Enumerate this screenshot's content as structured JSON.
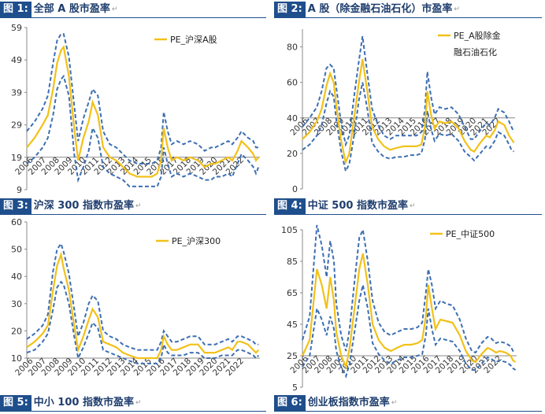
{
  "panels": [
    {
      "tag": "图 1:",
      "title": "全部 A 股市盈率"
    },
    {
      "tag": "图 2:",
      "title": "A 股（除金融石油石化）市盈率"
    },
    {
      "tag": "图 3:",
      "title": "沪深 300 指数市盈率"
    },
    {
      "tag": "图 4:",
      "title": "中证 500 指数市盈率"
    },
    {
      "tag": "图 5:",
      "title": "中小 100 指数市盈率"
    },
    {
      "tag": "图 6:",
      "title": "创业板指数市盈率"
    }
  ],
  "chart_data": [
    {
      "type": "line",
      "years": [
        "2006",
        "2007",
        "2008",
        "2009",
        "2010",
        "2011",
        "2012",
        "2013",
        "2014",
        "2015",
        "2016",
        "2017",
        "2018",
        "2019",
        "2020",
        "2021",
        "2022"
      ],
      "yticks": [
        59,
        49,
        39,
        29,
        19,
        9
      ],
      "ylim": [
        9,
        59
      ],
      "legend": [
        "PE_沪深A股"
      ],
      "colors": {
        "line": "#f2c11a",
        "band": "#3d6fb2"
      },
      "t": [
        2005.0,
        2005.6,
        2006.2,
        2006.6,
        2007.0,
        2007.3,
        2007.6,
        2007.8,
        2008.2,
        2008.6,
        2008.9,
        2009.3,
        2009.7,
        2010.0,
        2010.4,
        2010.8,
        2011.3,
        2011.8,
        2012.3,
        2012.8,
        2013.4,
        2014.0,
        2014.5,
        2014.9,
        2015.2,
        2015.4,
        2015.7,
        2016.0,
        2016.4,
        2016.9,
        2017.4,
        2018.0,
        2018.5,
        2019.0,
        2019.3,
        2019.8,
        2020.3,
        2020.6,
        2021.0,
        2021.3,
        2021.8,
        2022.2,
        2022.4,
        2022.6
      ],
      "series": [
        {
          "values": [
            22,
            25,
            29,
            32,
            40,
            48,
            52,
            53,
            44,
            28,
            18,
            25,
            30,
            36,
            32,
            22,
            19,
            18,
            16,
            14,
            13,
            13,
            13,
            14,
            18,
            28,
            22,
            18,
            19,
            18,
            19,
            18,
            16,
            17,
            17,
            18,
            19,
            18,
            21,
            24,
            22,
            20,
            18,
            19
          ]
        },
        {
          "values": [
            27,
            30,
            34,
            38,
            48,
            55,
            57,
            57,
            50,
            35,
            24,
            31,
            36,
            40,
            38,
            27,
            23,
            22,
            20,
            18,
            17,
            17,
            17,
            18,
            22,
            33,
            27,
            23,
            24,
            23,
            24,
            23,
            21,
            22,
            22,
            23,
            24,
            23,
            25,
            27,
            25,
            24,
            22,
            22
          ]
        },
        {
          "values": [
            17,
            19,
            22,
            25,
            32,
            40,
            43,
            44,
            38,
            20,
            12,
            16,
            21,
            28,
            25,
            16,
            14,
            13,
            12,
            10,
            10,
            10,
            10,
            10,
            13,
            22,
            17,
            13,
            14,
            13,
            14,
            13,
            12,
            12,
            13,
            13,
            14,
            13,
            17,
            20,
            18,
            16,
            14,
            16
          ]
        }
      ]
    },
    {
      "type": "line",
      "years": [
        "2006",
        "2007",
        "2008",
        "2009",
        "2010",
        "2011",
        "2012",
        "2013",
        "2014",
        "2015",
        "2016",
        "2017",
        "2018",
        "2019",
        "2020",
        "2021",
        "2022"
      ],
      "yticks": [
        80,
        60,
        40,
        20,
        0
      ],
      "ylim": [
        0,
        90
      ],
      "legend": [
        "PE_A股除金融石油石化"
      ],
      "colors": {
        "line": "#f2c11a",
        "band": "#3d6fb2"
      },
      "t": [
        2005.0,
        2005.6,
        2006.2,
        2006.6,
        2007.0,
        2007.3,
        2007.6,
        2007.8,
        2008.2,
        2008.6,
        2008.9,
        2009.3,
        2009.7,
        2010.0,
        2010.4,
        2010.8,
        2011.3,
        2011.8,
        2012.3,
        2012.8,
        2013.4,
        2014.0,
        2014.5,
        2014.9,
        2015.2,
        2015.4,
        2015.7,
        2016.0,
        2016.4,
        2016.9,
        2017.4,
        2018.0,
        2018.5,
        2019.0,
        2019.3,
        2019.8,
        2020.3,
        2020.6,
        2021.0,
        2021.3,
        2021.8,
        2022.2,
        2022.4,
        2022.6
      ],
      "series": [
        {
          "values": [
            28,
            32,
            38,
            45,
            58,
            65,
            60,
            48,
            28,
            15,
            20,
            40,
            60,
            73,
            55,
            35,
            28,
            24,
            22,
            23,
            24,
            24,
            24,
            25,
            35,
            55,
            42,
            34,
            38,
            37,
            38,
            34,
            27,
            22,
            21,
            26,
            30,
            29,
            33,
            38,
            36,
            30,
            28,
            26
          ]
        },
        {
          "values": [
            35,
            40,
            46,
            55,
            68,
            70,
            68,
            58,
            38,
            25,
            30,
            52,
            72,
            86,
            65,
            45,
            36,
            30,
            28,
            30,
            30,
            30,
            30,
            32,
            45,
            66,
            52,
            42,
            46,
            45,
            46,
            42,
            35,
            28,
            28,
            33,
            37,
            36,
            40,
            45,
            43,
            38,
            35,
            32
          ]
        },
        {
          "values": [
            22,
            25,
            30,
            36,
            48,
            55,
            52,
            40,
            22,
            10,
            14,
            30,
            50,
            60,
            45,
            26,
            21,
            18,
            17,
            18,
            18,
            19,
            19,
            20,
            28,
            44,
            34,
            27,
            31,
            30,
            31,
            27,
            21,
            18,
            16,
            20,
            24,
            23,
            27,
            32,
            30,
            25,
            22,
            21
          ]
        }
      ]
    },
    {
      "type": "line",
      "years": [
        "2006",
        "2007",
        "2008",
        "2009",
        "2010",
        "2011",
        "2012",
        "2013",
        "2014",
        "2015",
        "2016",
        "2017",
        "2018",
        "2019",
        "2020",
        "2021",
        "2022"
      ],
      "yticks": [
        60,
        50,
        40,
        30,
        20,
        10
      ],
      "ylim": [
        10,
        60
      ],
      "legend": [
        "PE_沪深300"
      ],
      "colors": {
        "line": "#f2c11a",
        "band": "#3d6fb2"
      },
      "t": [
        2005.0,
        2005.6,
        2006.2,
        2006.6,
        2007.0,
        2007.3,
        2007.6,
        2007.8,
        2008.2,
        2008.6,
        2008.9,
        2009.3,
        2009.7,
        2010.0,
        2010.4,
        2010.8,
        2011.3,
        2011.8,
        2012.3,
        2012.8,
        2013.4,
        2014.0,
        2014.5,
        2014.9,
        2015.2,
        2015.4,
        2015.7,
        2016.0,
        2016.4,
        2016.9,
        2017.4,
        2018.0,
        2018.5,
        2019.0,
        2019.3,
        2019.8,
        2020.3,
        2020.6,
        2021.0,
        2021.3,
        2021.8,
        2022.2,
        2022.4,
        2022.6
      ],
      "series": [
        {
          "values": [
            14,
            16,
            19,
            22,
            35,
            44,
            48,
            43,
            35,
            22,
            13,
            18,
            24,
            28,
            25,
            16,
            15,
            14,
            12,
            11,
            10,
            10,
            10,
            10,
            13,
            18,
            15,
            13,
            13,
            14,
            15,
            15,
            12,
            12,
            12,
            13,
            14,
            13,
            16,
            16,
            15,
            13,
            12,
            13
          ]
        },
        {
          "values": [
            17,
            19,
            22,
            26,
            42,
            50,
            52,
            49,
            41,
            28,
            18,
            23,
            30,
            33,
            31,
            20,
            18,
            17,
            15,
            14,
            13,
            13,
            13,
            13,
            16,
            20,
            18,
            16,
            16,
            17,
            18,
            18,
            15,
            15,
            15,
            16,
            17,
            16,
            18,
            18,
            17,
            16,
            15,
            15
          ]
        },
        {
          "values": [
            12,
            13,
            16,
            19,
            28,
            36,
            38,
            37,
            30,
            18,
            10,
            14,
            19,
            23,
            21,
            13,
            12,
            11,
            10,
            9,
            8,
            8,
            8,
            8,
            10,
            15,
            12,
            11,
            11,
            11,
            12,
            12,
            10,
            10,
            10,
            11,
            11,
            11,
            13,
            13,
            12,
            11,
            10,
            11
          ]
        }
      ]
    },
    {
      "type": "line",
      "years": [
        "2006",
        "2007",
        "2008",
        "2009",
        "2010",
        "2011",
        "2012",
        "2013",
        "2014",
        "2015",
        "2016",
        "2017",
        "2018",
        "2019",
        "2020",
        "2021",
        "2022"
      ],
      "yticks": [
        105,
        85,
        65,
        45,
        25,
        5
      ],
      "ylim": [
        5,
        105
      ],
      "legend": [
        "PE_中证500"
      ],
      "colors": {
        "line": "#f2c11a",
        "band": "#3d6fb2"
      },
      "t": [
        2005.0,
        2005.6,
        2006.2,
        2006.6,
        2007.0,
        2007.3,
        2007.6,
        2007.8,
        2008.2,
        2008.6,
        2008.9,
        2009.3,
        2009.7,
        2010.0,
        2010.4,
        2010.8,
        2011.3,
        2011.8,
        2012.3,
        2012.8,
        2013.4,
        2014.0,
        2014.5,
        2014.9,
        2015.2,
        2015.4,
        2015.7,
        2016.0,
        2016.4,
        2016.9,
        2017.4,
        2018.0,
        2018.5,
        2019.0,
        2019.3,
        2019.8,
        2020.3,
        2020.6,
        2021.0,
        2021.3,
        2021.8,
        2022.2,
        2022.4,
        2022.6
      ],
      "series": [
        {
          "values": [
            25,
            35,
            80,
            70,
            55,
            75,
            60,
            40,
            25,
            18,
            30,
            55,
            80,
            90,
            70,
            45,
            35,
            30,
            28,
            30,
            32,
            32,
            33,
            35,
            50,
            70,
            55,
            42,
            48,
            47,
            46,
            38,
            28,
            22,
            21,
            26,
            30,
            29,
            27,
            28,
            27,
            25,
            22,
            21
          ]
        },
        {
          "values": [
            35,
            50,
            108,
            95,
            75,
            98,
            85,
            58,
            38,
            28,
            42,
            72,
            100,
            105,
            85,
            60,
            46,
            40,
            38,
            40,
            42,
            42,
            43,
            46,
            65,
            80,
            70,
            55,
            60,
            58,
            57,
            48,
            36,
            28,
            27,
            33,
            37,
            36,
            33,
            34,
            33,
            31,
            28,
            27
          ]
        },
        {
          "values": [
            18,
            25,
            55,
            48,
            38,
            50,
            42,
            28,
            18,
            12,
            20,
            40,
            60,
            70,
            55,
            33,
            26,
            22,
            20,
            22,
            24,
            24,
            25,
            26,
            38,
            55,
            42,
            32,
            36,
            35,
            34,
            28,
            20,
            16,
            16,
            20,
            24,
            23,
            21,
            22,
            21,
            19,
            17,
            16
          ]
        }
      ]
    }
  ]
}
